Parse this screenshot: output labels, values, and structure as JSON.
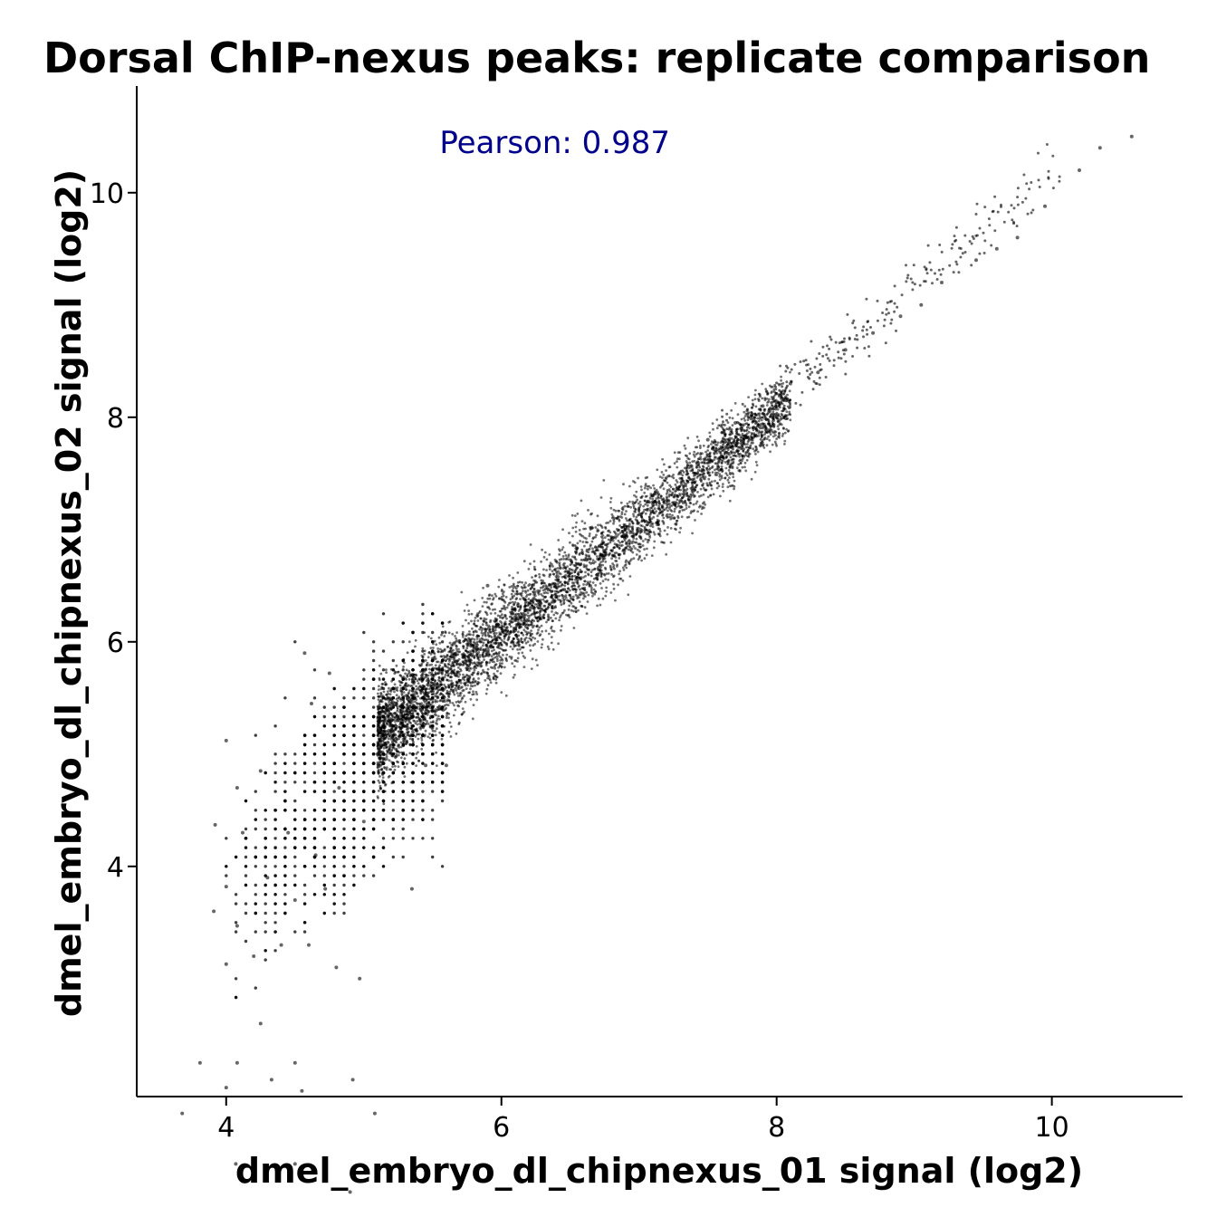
{
  "chart_data": {
    "type": "scatter",
    "title": "Dorsal ChIP-nexus peaks: replicate comparison",
    "xlabel": "dmel_embryo_dl_chipnexus_01 signal (log2)",
    "ylabel": "dmel_embryo_dl_chipnexus_02 signal (log2)",
    "xlim": [
      3.35,
      10.95
    ],
    "ylim": [
      1.95,
      10.95
    ],
    "xticks": [
      4,
      6,
      8,
      10
    ],
    "yticks": [
      4,
      6,
      8,
      10
    ],
    "grid": false,
    "point_color": "#000000",
    "annotation": {
      "text": "Pearson: 0.987",
      "x": 5.55,
      "y": 10.45,
      "color": "#00008b"
    },
    "points_sampled": {
      "x": [
        3.68,
        3.81,
        3.91,
        3.92,
        4.0,
        4.0,
        4.0,
        4.0,
        4.07,
        4.08,
        4.08,
        4.08,
        4.12,
        4.2,
        4.25,
        4.25,
        4.3,
        4.33,
        4.4,
        4.45,
        4.5,
        4.5,
        4.5,
        4.55,
        4.57,
        4.6,
        4.62,
        4.65,
        4.72,
        4.75,
        4.8,
        4.82,
        4.9,
        4.92,
        4.97,
        5.0,
        5.08,
        5.1,
        5.2,
        5.3,
        5.35,
        5.45,
        5.6,
        5.7,
        5.9,
        6.1,
        6.4,
        6.7,
        6.9,
        7.1,
        7.3,
        7.5,
        7.7,
        7.9,
        8.1,
        8.3,
        8.5,
        8.7,
        8.9,
        9.05,
        9.2,
        9.45,
        9.6,
        9.75,
        9.95,
        10.2,
        10.35,
        10.58
      ],
      "y": [
        1.8,
        2.25,
        3.6,
        4.37,
        3.13,
        3.82,
        2.03,
        5.12,
        1.35,
        3.47,
        4.7,
        2.25,
        4.3,
        3.2,
        4.85,
        2.6,
        3.9,
        2.1,
        3.3,
        4.3,
        2.25,
        1.35,
        3.7,
        2.0,
        5.9,
        3.3,
        5.45,
        4.1,
        3.8,
        5.72,
        3.1,
        4.7,
        1.1,
        2.1,
        3.0,
        4.4,
        1.8,
        5.0,
        5.3,
        5.6,
        3.8,
        4.9,
        4.9,
        5.8,
        6.5,
        6.1,
        6.4,
        6.6,
        7.0,
        7.3,
        7.5,
        7.8,
        7.95,
        8.1,
        8.3,
        8.4,
        8.6,
        8.75,
        8.9,
        9.0,
        9.2,
        9.4,
        9.5,
        9.6,
        9.88,
        10.2,
        10.4,
        10.5
      ]
    }
  }
}
